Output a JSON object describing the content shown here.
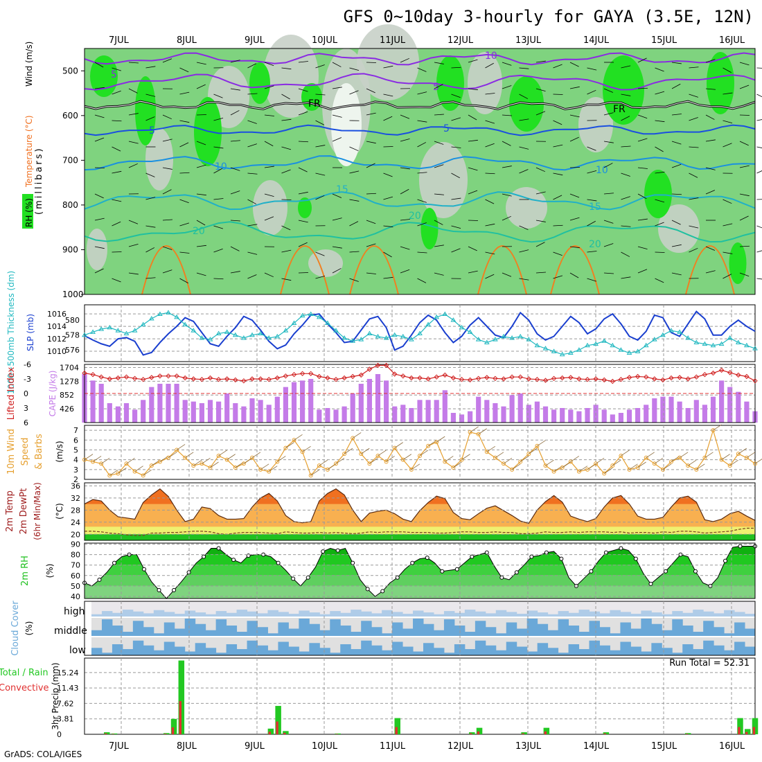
{
  "title": "GFS 0~10day 3-hourly for GAYA (3.5E, 12N)",
  "credit": "GrADS: COLA/IGES",
  "colors": {
    "rh_light": "#7fd37f",
    "rh_bright": "#22e022",
    "gray_fill": "#c8d0c8",
    "slp": "#1a3fcf",
    "thickness": "#20b8c0",
    "cape": "#c47be8",
    "lifted_index": "#d02020",
    "wind10m": "#e6a030",
    "temp_orange": "#f07020",
    "temp_light": "#f8b050",
    "dew_yellow": "#f0f070",
    "rh2m_green": "#20c020",
    "cloud_blue": "#6aa8d8",
    "precip_green": "#22c822",
    "precip_red": "#e03030"
  },
  "days": [
    "7JUL",
    "8JUL",
    "9JUL",
    "10JUL",
    "11JUL",
    "12JUL",
    "13JUL",
    "14JUL",
    "15JUL",
    "16JUL"
  ],
  "chart_data": [
    {
      "type": "heatmap",
      "panel": "Wind / Temperature / RH cross-section",
      "ylabel": "(millibars)",
      "legend": [
        "RH (%)",
        "Temperature (°C)",
        "Wind (m/s)"
      ],
      "yticks": [
        500,
        600,
        700,
        800,
        900,
        1000
      ],
      "ylim": [
        1000,
        450
      ],
      "isotherm_labels": [
        "5",
        "10",
        "15",
        "20",
        "FR"
      ],
      "isotachs": [
        "5",
        "10"
      ]
    },
    {
      "type": "line",
      "panel": "1000-500mb thickness & SLP",
      "ylabel_left": "1000~500mb Thickness (dm)",
      "ylabel_right": "SLP (mb)",
      "left_ticks": [
        "576",
        "578",
        "580"
      ],
      "right_ticks": [
        "1010",
        "1012",
        "1014",
        "1016"
      ],
      "series": [
        {
          "name": "SLP (mb)",
          "values": [
            1012.5,
            1011.8,
            1011.2,
            1010.8,
            1012.0,
            1012.2,
            1011.6,
            1009.4,
            1009.8,
            1011.4,
            1012.8,
            1014.0,
            1015.4,
            1014.8,
            1013.0,
            1011.2,
            1010.8,
            1012.4,
            1013.8,
            1015.6,
            1015.0,
            1013.4,
            1011.6,
            1010.4,
            1011.0,
            1012.8,
            1014.2,
            1015.8,
            1016.0,
            1014.4,
            1013.0,
            1011.4,
            1011.6,
            1013.4,
            1015.2,
            1015.6,
            1013.8,
            1010.2,
            1010.8,
            1012.6,
            1014.6,
            1015.8,
            1015.0,
            1013.0,
            1011.4,
            1012.4,
            1014.2,
            1015.4,
            1014.0,
            1012.6,
            1012.2,
            1014.0,
            1016.2,
            1015.0,
            1012.8,
            1011.8,
            1012.4,
            1014.0,
            1015.6,
            1014.6,
            1012.8,
            1013.6,
            1015.2,
            1016.0,
            1014.4,
            1012.4,
            1011.8,
            1013.2,
            1015.8,
            1015.4,
            1013.0,
            1012.4,
            1014.4,
            1016.4,
            1015.2,
            1012.6,
            1012.6,
            1014.0,
            1015.0,
            1014.0,
            1013.2
          ]
        },
        {
          "name": "1000~500mb Thickness (dm)",
          "values": [
            578.0,
            578.4,
            578.8,
            579.0,
            578.6,
            578.2,
            578.6,
            579.4,
            580.2,
            580.8,
            581.0,
            580.4,
            579.4,
            578.6,
            577.6,
            577.4,
            578.2,
            578.4,
            578.0,
            577.6,
            578.0,
            578.2,
            577.6,
            577.8,
            578.6,
            579.6,
            580.6,
            580.8,
            580.4,
            579.6,
            578.6,
            577.6,
            577.2,
            577.4,
            578.2,
            577.8,
            577.6,
            578.0,
            577.8,
            577.4,
            578.2,
            579.4,
            580.4,
            580.8,
            580.0,
            579.0,
            578.4,
            577.4,
            577.0,
            577.4,
            577.8,
            577.6,
            577.8,
            577.4,
            576.6,
            576.2,
            575.8,
            575.4,
            575.6,
            576.0,
            576.6,
            576.8,
            577.2,
            576.6,
            576.0,
            575.6,
            575.8,
            576.6,
            577.4,
            578.0,
            578.6,
            578.4,
            577.6,
            577.0,
            576.8,
            576.6,
            576.8,
            577.6,
            577.0,
            576.6,
            576.2
          ]
        }
      ]
    },
    {
      "type": "bar",
      "panel": "Lifted Index / CAPE",
      "ylabel_left": "Lifted Index",
      "ylabel_right": "CAPE (J/kg)",
      "left_ticks": [
        "-6",
        "-3",
        "0",
        "3",
        "6"
      ],
      "right_ticks": [
        "1704",
        "1278",
        "852",
        "426"
      ],
      "series": [
        {
          "name": "CAPE (J/kg)",
          "values": [
            1500,
            1300,
            1200,
            600,
            500,
            600,
            400,
            700,
            1100,
            1200,
            1200,
            1200,
            700,
            650,
            600,
            700,
            650,
            900,
            600,
            500,
            750,
            700,
            550,
            800,
            1100,
            1250,
            1300,
            1350,
            400,
            450,
            400,
            500,
            900,
            1200,
            1350,
            1500,
            1300,
            500,
            550,
            450,
            700,
            700,
            700,
            1000,
            300,
            250,
            350,
            800,
            700,
            600,
            500,
            850,
            900,
            550,
            650,
            500,
            400,
            450,
            400,
            350,
            450,
            550,
            400,
            250,
            300,
            400,
            450,
            550,
            750,
            800,
            800,
            650,
            450,
            700,
            550,
            800,
            1300,
            1100,
            950,
            650,
            350
          ]
        },
        {
          "name": "Lifted Index",
          "values": [
            -4.2,
            -3.9,
            -3.4,
            -3.0,
            -3.2,
            -3.4,
            -3.1,
            -2.9,
            -3.3,
            -3.6,
            -3.6,
            -3.6,
            -3.2,
            -3.0,
            -2.9,
            -3.2,
            -2.9,
            -3.0,
            -2.8,
            -2.6,
            -3.0,
            -3.0,
            -2.9,
            -3.2,
            -3.6,
            -3.9,
            -4.1,
            -4.1,
            -3.5,
            -3.2,
            -2.9,
            -3.2,
            -3.5,
            -3.8,
            -5.0,
            -5.8,
            -5.8,
            -4.0,
            -3.6,
            -3.2,
            -3.2,
            -3.0,
            -3.4,
            -3.8,
            -3.2,
            -2.9,
            -2.8,
            -3.1,
            -3.3,
            -3.1,
            -3.0,
            -3.4,
            -3.4,
            -3.0,
            -2.9,
            -2.7,
            -3.1,
            -3.2,
            -3.3,
            -3.0,
            -2.9,
            -3.0,
            -2.8,
            -2.5,
            -2.9,
            -3.3,
            -3.5,
            -3.4,
            -3.0,
            -2.8,
            -3.2,
            -3.3,
            -3.0,
            -3.4,
            -3.9,
            -4.2,
            -4.8,
            -4.3,
            -3.8,
            -3.5,
            -2.6
          ]
        }
      ]
    },
    {
      "type": "line",
      "panel": "10m Wind Speed & Barbs",
      "ylabel": "10m Wind Speed & Barbs (m/s)",
      "yticks": [
        "2",
        "3",
        "4",
        "5",
        "6",
        "7"
      ],
      "ylim": [
        2,
        7.5
      ],
      "series": [
        {
          "name": "10m Wind Speed",
          "values": [
            4.0,
            3.8,
            3.6,
            2.4,
            2.6,
            3.6,
            2.8,
            2.4,
            3.4,
            3.8,
            4.2,
            5.0,
            4.2,
            3.4,
            3.6,
            3.2,
            4.4,
            4.0,
            3.2,
            3.6,
            4.2,
            3.0,
            2.8,
            3.8,
            5.2,
            6.0,
            4.8,
            2.4,
            3.4,
            3.0,
            3.6,
            4.6,
            6.2,
            4.6,
            3.6,
            4.4,
            3.8,
            5.2,
            4.0,
            3.0,
            4.4,
            5.4,
            5.8,
            3.8,
            3.2,
            4.0,
            6.8,
            6.6,
            4.8,
            4.2,
            3.6,
            3.0,
            3.8,
            4.6,
            5.4,
            3.4,
            2.8,
            3.2,
            3.8,
            2.8,
            3.0,
            3.6,
            2.6,
            3.4,
            4.4,
            3.0,
            3.2,
            4.2,
            3.6,
            3.0,
            3.8,
            4.2,
            3.4,
            3.0,
            4.2,
            7.0,
            4.0,
            3.4,
            4.6,
            4.2,
            3.6
          ]
        }
      ]
    },
    {
      "type": "area",
      "panel": "2m Temp / 2m DewPt",
      "ylabel": "2m Temp / 2m DewPt / (6hr Min/Max) (°C)",
      "yticks": [
        "20",
        "24",
        "28",
        "32",
        "36"
      ],
      "ylim": [
        18,
        37
      ],
      "series": [
        {
          "name": "2m Temp",
          "values": [
            30.0,
            31.5,
            31.0,
            28.0,
            25.8,
            25.4,
            25.0,
            30.5,
            33.0,
            35.0,
            32.5,
            28.0,
            24.2,
            25.0,
            29.0,
            28.5,
            26.2,
            25.0,
            25.0,
            25.2,
            29.0,
            32.0,
            33.5,
            31.0,
            26.2,
            24.2,
            23.8,
            24.2,
            31.0,
            33.5,
            35.0,
            33.0,
            28.0,
            24.2,
            27.0,
            27.6,
            28.0,
            26.8,
            25.0,
            24.2,
            27.8,
            30.5,
            32.6,
            31.8,
            27.2,
            25.2,
            24.8,
            26.8,
            28.6,
            29.4,
            27.8,
            26.2,
            24.4,
            23.6,
            28.0,
            30.8,
            32.8,
            30.6,
            26.0,
            25.0,
            24.2,
            25.2,
            29.0,
            32.0,
            32.8,
            30.0,
            26.0,
            25.0,
            25.0,
            25.6,
            29.0,
            32.0,
            32.6,
            30.6,
            24.8,
            24.2,
            25.0,
            26.8,
            27.6,
            26.0,
            24.6
          ]
        },
        {
          "name": "2m DewPt",
          "values": [
            21.0,
            21.0,
            20.8,
            20.4,
            20.2,
            19.8,
            19.6,
            19.6,
            20.4,
            20.4,
            20.6,
            20.6,
            20.8,
            21.0,
            21.0,
            20.8,
            20.2,
            20.0,
            20.4,
            20.6,
            20.6,
            20.6,
            20.4,
            20.2,
            20.8,
            20.6,
            20.4,
            20.4,
            20.6,
            20.4,
            20.6,
            20.4,
            20.2,
            20.4,
            20.8,
            20.6,
            20.8,
            20.8,
            20.8,
            20.6,
            20.6,
            20.6,
            20.4,
            20.4,
            20.6,
            20.8,
            20.8,
            20.6,
            20.6,
            20.8,
            20.6,
            20.6,
            20.2,
            20.2,
            20.4,
            20.8,
            20.6,
            20.6,
            20.8,
            20.6,
            20.8,
            20.8,
            20.8,
            20.6,
            20.8,
            20.4,
            20.6,
            20.6,
            20.4,
            20.8,
            20.6,
            21.0,
            21.0,
            20.8,
            20.4,
            20.6,
            20.8,
            21.0,
            21.6,
            22.0,
            22.0
          ]
        }
      ]
    },
    {
      "type": "area",
      "panel": "2m RH",
      "ylabel": "2m RH (%)",
      "yticks": [
        "40",
        "50",
        "60",
        "70",
        "80",
        "90"
      ],
      "ylim": [
        38,
        91
      ],
      "series": [
        {
          "name": "2m RH",
          "values": [
            53,
            50,
            56,
            63,
            72,
            78,
            80,
            80,
            66,
            54,
            46,
            38,
            46,
            54,
            63,
            72,
            78,
            86,
            86,
            80,
            75,
            72,
            79,
            80,
            80,
            78,
            72,
            65,
            57,
            50,
            58,
            68,
            83,
            86,
            84,
            86,
            72,
            56,
            47,
            40,
            45,
            53,
            58,
            66,
            72,
            76,
            77,
            72,
            64,
            65,
            66,
            72,
            78,
            80,
            82,
            69,
            58,
            56,
            63,
            70,
            78,
            79,
            82,
            83,
            76,
            58,
            50,
            57,
            64,
            74,
            82,
            84,
            86,
            84,
            76,
            62,
            52,
            58,
            64,
            72,
            80,
            78,
            64,
            53,
            50,
            58,
            74,
            87,
            88,
            88,
            88
          ]
        }
      ]
    },
    {
      "type": "heatmap",
      "panel": "Cloud Cover",
      "ylabel": "Cloud Cover (%)",
      "levels": [
        "high",
        "middle",
        "low"
      ]
    },
    {
      "type": "bar",
      "panel": "3hr Precip",
      "ylabel": "3hr Precip (mm)",
      "legend": [
        "Total / Rain",
        "Convective"
      ],
      "yticks": [
        "0",
        "3.81",
        "7.62",
        "11.43",
        "15.24"
      ],
      "ylim": [
        0,
        18
      ],
      "run_total_label": "Run Total = 52.31",
      "series": [
        {
          "name": "Total",
          "values": [
            0,
            0,
            0,
            0.5,
            0.2,
            0,
            0,
            0,
            0,
            0,
            0,
            0.3,
            3.8,
            18.2,
            0,
            0,
            0,
            0,
            0,
            0,
            0,
            0,
            0,
            0,
            0,
            1.4,
            7.0,
            0.8,
            0,
            0,
            0,
            0,
            0,
            0,
            0.2,
            0,
            0,
            0,
            0,
            0,
            0,
            0,
            4.0,
            0,
            0,
            0,
            0,
            0,
            0,
            0,
            0,
            0,
            0.5,
            1.6,
            0,
            0,
            0,
            0,
            0,
            0.5,
            0,
            0,
            1.6,
            0,
            0,
            0,
            0,
            0,
            0,
            0,
            0.5,
            0,
            0,
            0,
            0,
            0,
            0,
            0,
            0,
            0,
            0,
            0.3,
            0,
            0,
            0,
            0,
            0,
            0,
            4.0,
            1.3,
            4.0
          ]
        }
      ]
    }
  ]
}
